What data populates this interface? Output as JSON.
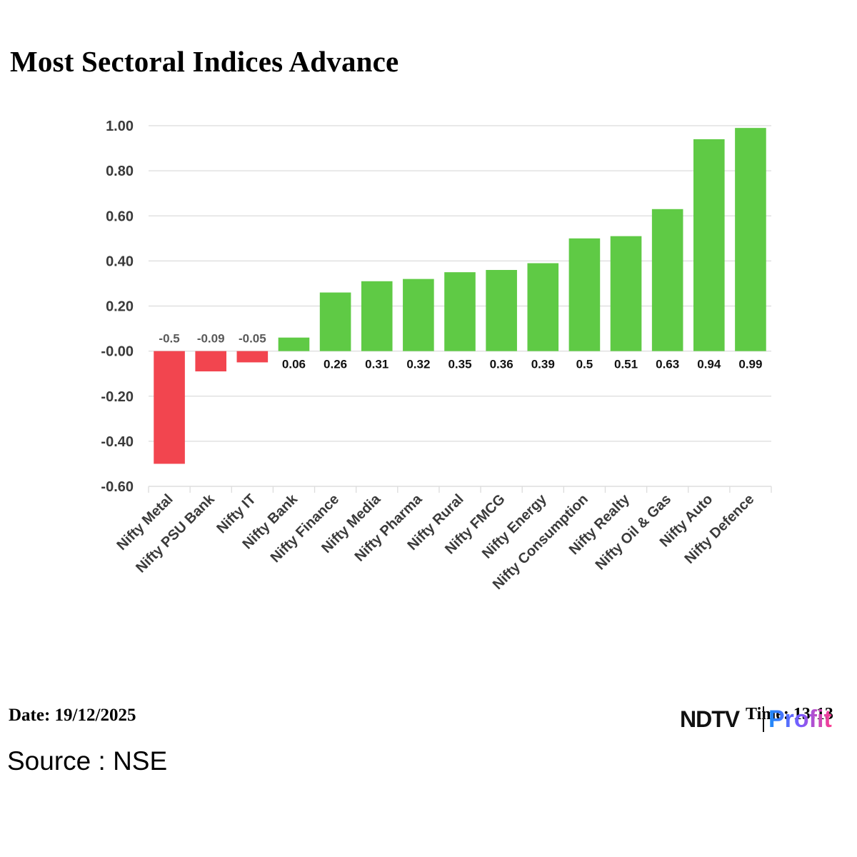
{
  "header": {
    "title": "Most Sectoral Indices Advance"
  },
  "footer": {
    "date": "Date: 19/12/2025",
    "source": "Source : NSE",
    "time": "Time: 13:13",
    "brand_ndtv": "NDTV",
    "brand_profit": "Profit"
  },
  "colors": {
    "positive": "#5fca45",
    "negative": "#f2454f",
    "grid": "#dcdcdc"
  },
  "chart_data": {
    "type": "bar",
    "title": "Most Sectoral Indices Advance",
    "categories": [
      "Nifty Metal",
      "Nifty PSU Bank",
      "Nifty IT",
      "Nifty Bank",
      "Nifty Finance",
      "Nifty Media",
      "Nifty Pharma",
      "Nifty Rural",
      "Nifty FMCG",
      "Nifty Energy",
      "Nifty Consumption",
      "Nifty Realty",
      "Nifty Oil & Gas",
      "Nifty Auto",
      "Nifty Defence"
    ],
    "values": [
      -0.5,
      -0.09,
      -0.05,
      0.06,
      0.26,
      0.31,
      0.32,
      0.35,
      0.36,
      0.39,
      0.5,
      0.51,
      0.63,
      0.94,
      0.99
    ],
    "data_labels": [
      "-0.5",
      "-0.09",
      "-0.05",
      "0.06",
      "0.26",
      "0.31",
      "0.32",
      "0.35",
      "0.36",
      "0.39",
      "0.5",
      "0.51",
      "0.63",
      "0.94",
      "0.99"
    ],
    "yticks": [
      1.0,
      0.8,
      0.6,
      0.4,
      0.2,
      0.0,
      -0.2,
      -0.4,
      -0.6
    ],
    "ytick_labels": [
      "1.00",
      "0.80",
      "0.60",
      "0.40",
      "0.20",
      "-0.00",
      "-0.20",
      "-0.40",
      "-0.60"
    ],
    "ylim": [
      -0.6,
      1.0
    ],
    "xlabel": "",
    "ylabel": "",
    "grid": true,
    "legend": "none"
  }
}
